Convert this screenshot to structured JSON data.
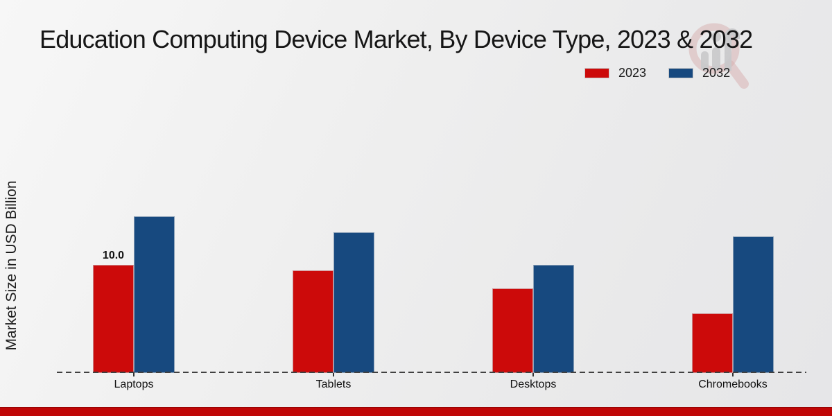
{
  "chart_data": {
    "type": "bar",
    "title": "Education Computing Device Market, By Device Type, 2023 & 2032",
    "ylabel": "Market Size in USD Billion",
    "xlabel": "",
    "categories": [
      "Laptops",
      "Tablets",
      "Desktops",
      "Chromebooks"
    ],
    "series": [
      {
        "name": "2023",
        "color": "#cc0a0a",
        "values": [
          10.0,
          9.5,
          7.8,
          5.5
        ]
      },
      {
        "name": "2032",
        "color": "#17497f",
        "values": [
          14.5,
          13.0,
          10.0,
          12.6
        ]
      }
    ],
    "bar_labels": [
      {
        "category": "Laptops",
        "series": "2023",
        "text": "10.0"
      }
    ],
    "ylim": [
      0,
      16
    ],
    "grid": false,
    "legend_position": "top-right",
    "baseline_style": "dashed"
  },
  "decor": {
    "watermark_icon": "magnifier-bar-chart-logo",
    "footer_accent_color": "#c00606"
  }
}
